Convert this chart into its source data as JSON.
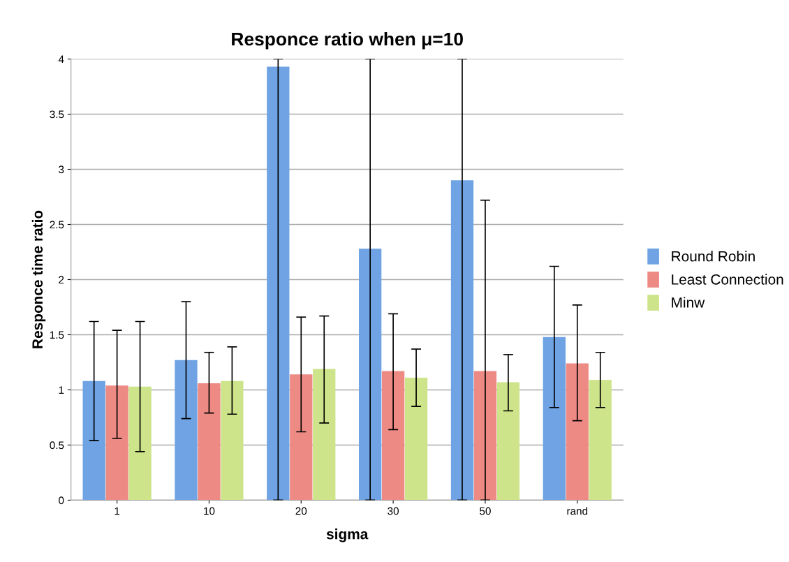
{
  "chart_data": {
    "type": "bar",
    "title": "Responce ratio when μ=10",
    "xlabel": "sigma",
    "ylabel": "Responce time ratio",
    "categories": [
      "1",
      "10",
      "20",
      "30",
      "50",
      "rand"
    ],
    "series": [
      {
        "name": "Round Robin",
        "color": "#6fa3e3",
        "values": [
          1.08,
          1.27,
          3.93,
          2.28,
          2.9,
          1.48
        ],
        "errors": [
          [
            0.54,
            1.62
          ],
          [
            0.74,
            1.8
          ],
          [
            0,
            4
          ],
          [
            0,
            4
          ],
          [
            0,
            4
          ],
          [
            0.84,
            2.12
          ]
        ]
      },
      {
        "name": "Least Connection",
        "color": "#ee8a84",
        "values": [
          1.04,
          1.06,
          1.14,
          1.17,
          1.17,
          1.24
        ],
        "errors": [
          [
            0.56,
            1.54
          ],
          [
            0.79,
            1.34
          ],
          [
            0.62,
            1.66
          ],
          [
            0.64,
            1.69
          ],
          [
            0,
            2.72
          ],
          [
            0.72,
            1.77
          ]
        ]
      },
      {
        "name": "Minw",
        "color": "#cde48a",
        "values": [
          1.03,
          1.08,
          1.19,
          1.11,
          1.07,
          1.09
        ],
        "errors": [
          [
            0.44,
            1.62
          ],
          [
            0.78,
            1.39
          ],
          [
            0.7,
            1.67
          ],
          [
            0.85,
            1.37
          ],
          [
            0.81,
            1.32
          ],
          [
            0.84,
            1.34
          ]
        ]
      }
    ],
    "ylim": [
      0,
      4
    ],
    "yticks": [
      0,
      0.5,
      1,
      1.5,
      2,
      2.5,
      3,
      3.5,
      4
    ],
    "grid": "y",
    "legend": "right"
  }
}
